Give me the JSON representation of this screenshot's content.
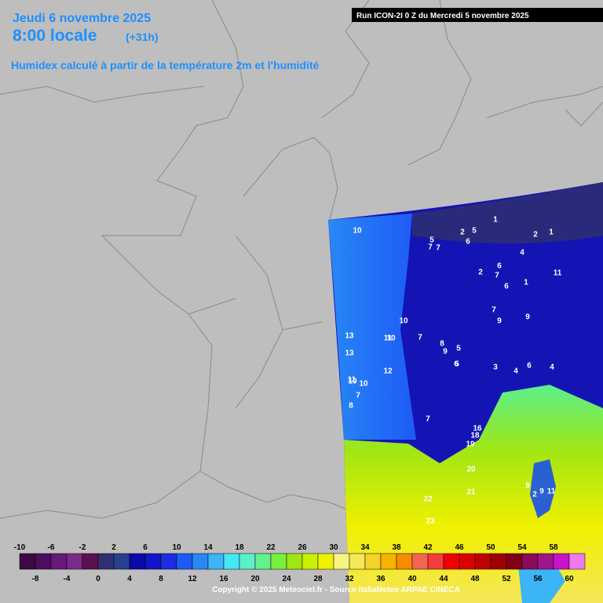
{
  "header": {
    "date": "Jeudi 6 novembre 2025",
    "time": "8:00 locale",
    "lead": "(+31h)",
    "description": "Humidex calculé à partir de la température 2m et l'humidité",
    "run": "Run ICON-2I 0 Z du Mercredi 5 novembre 2025"
  },
  "legend": {
    "ticks": [
      -10,
      -8,
      -6,
      -4,
      -2,
      0,
      2,
      4,
      6,
      8,
      10,
      12,
      14,
      16,
      18,
      20,
      22,
      24,
      26,
      28,
      30,
      32,
      34,
      36,
      38,
      40,
      42,
      44,
      46,
      48,
      50,
      52,
      54,
      56,
      58,
      60
    ],
    "colors": [
      "#3b0a45",
      "#4d0d5e",
      "#661a78",
      "#7a2a8a",
      "#5c1050",
      "#2f3070",
      "#27408c",
      "#0a0aa8",
      "#1414c8",
      "#1e2de0",
      "#1e5af5",
      "#2888f5",
      "#3cb4f5",
      "#46e6f5",
      "#5af0c8",
      "#64f08c",
      "#78f03c",
      "#a0e614",
      "#c8f000",
      "#f0f000",
      "#f5f582",
      "#f5e65a",
      "#f5d228",
      "#f5b400",
      "#f58c00",
      "#f56450",
      "#f53c3c",
      "#f00000",
      "#dc0000",
      "#be0000",
      "#a00000",
      "#820014",
      "#8c0a5a",
      "#a0148c",
      "#c814c8",
      "#f078f0"
    ]
  },
  "map_labels": [
    10,
    5,
    7,
    7,
    2,
    5,
    6,
    1,
    2,
    1,
    6,
    4,
    2,
    7,
    1,
    11,
    6,
    10,
    7,
    9,
    9,
    5,
    10,
    11,
    7,
    8,
    9,
    5,
    6,
    3,
    4,
    6,
    4,
    13,
    13,
    12,
    10,
    10,
    11,
    7,
    8,
    7,
    16,
    18,
    19,
    20,
    21,
    22,
    23,
    9,
    9,
    11,
    2
  ],
  "footer": {
    "copyright": "Copyright © 2025 Meteociel.fr - Source ItaliaMeteo ARPAE CINECA"
  }
}
